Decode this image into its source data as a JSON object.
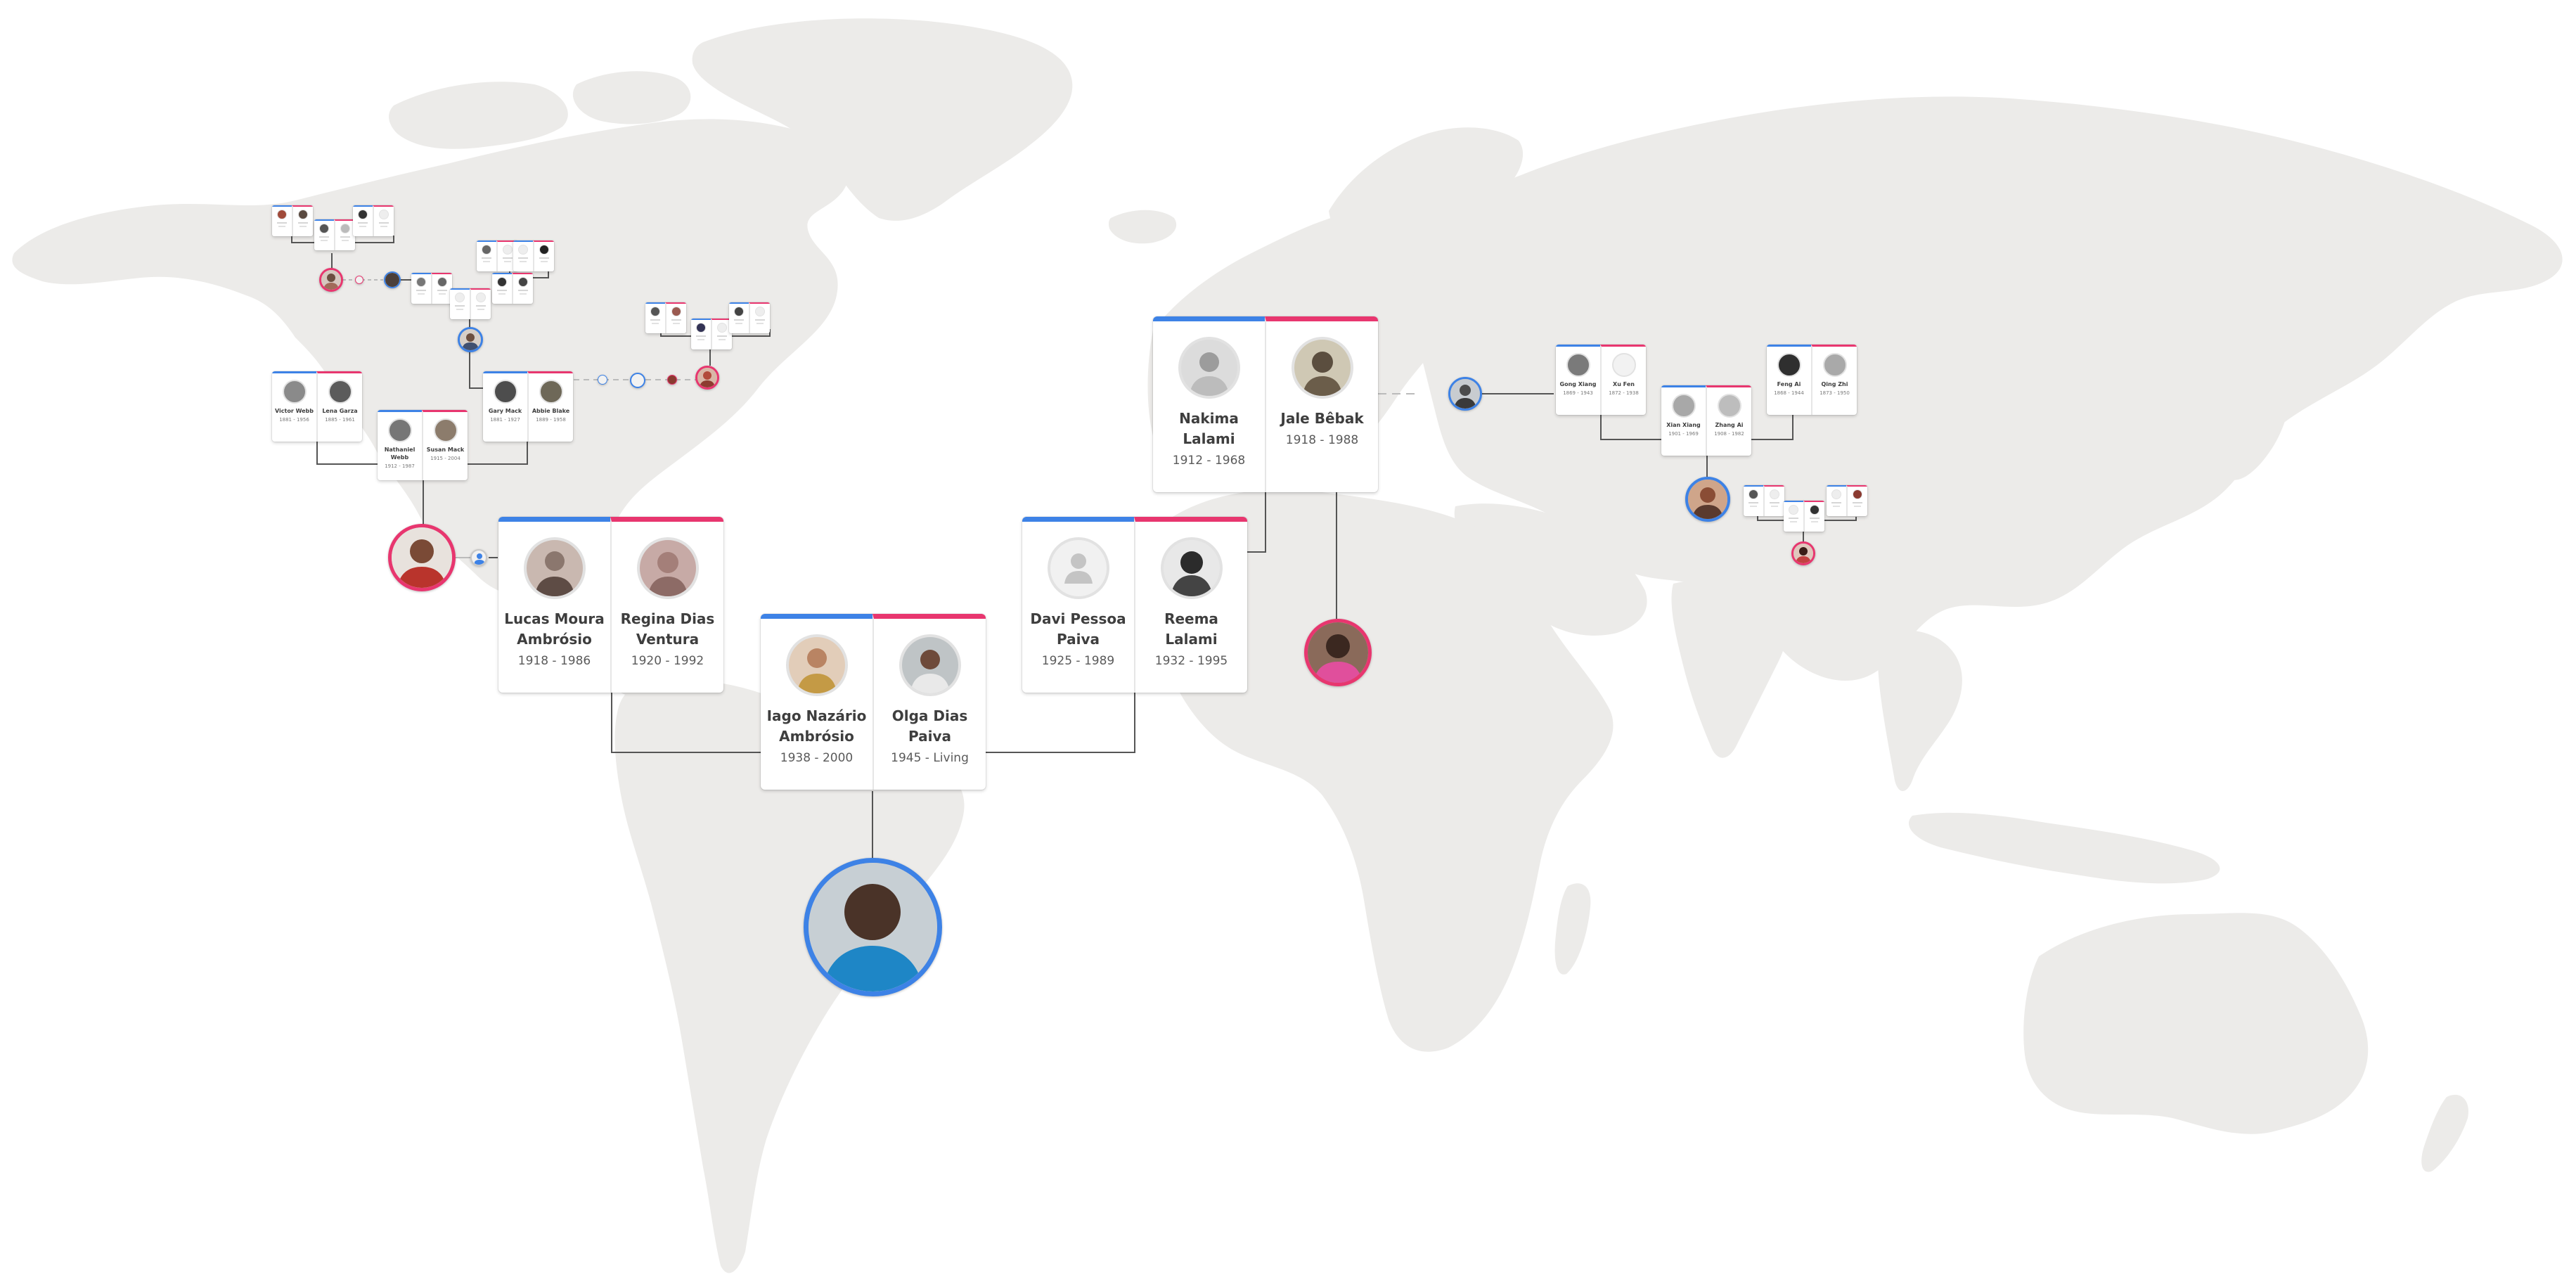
{
  "colors": {
    "map_land": "#ecebe9",
    "male_accent": "#3d82e6",
    "female_accent": "#e8366f",
    "connector": "#555555"
  },
  "main_couples": {
    "lucas_regina": {
      "husband": {
        "name": "Lucas Moura Ambrósio",
        "dates": "1918 - 1986",
        "icon": "portrait-icon"
      },
      "wife": {
        "name": "Regina Dias Ventura",
        "dates": "1920 - 1992",
        "icon": "portrait-icon"
      }
    },
    "iago_olga": {
      "husband": {
        "name": "Iago Nazário Ambrósio",
        "dates": "1938 - 2000",
        "icon": "portrait-icon"
      },
      "wife": {
        "name": "Olga Dias Paiva",
        "dates": "1945 - Living",
        "icon": "portrait-icon"
      }
    },
    "davi_reema": {
      "husband": {
        "name": "Davi Pessoa Paiva",
        "dates": "1925 - 1989",
        "icon": "silhouette-icon"
      },
      "wife": {
        "name": "Reema Lalami",
        "dates": "1932 - 1995",
        "icon": "portrait-icon"
      }
    },
    "nakima_jale": {
      "husband": {
        "name": "Nakima Lalami",
        "dates": "1912 - 1968",
        "icon": "portrait-icon"
      },
      "wife": {
        "name": "Jale Bêbak",
        "dates": "1918 - 1988",
        "icon": "portrait-icon"
      }
    }
  },
  "small_couples": {
    "victor_lena": {
      "husband": {
        "name": "Victor Webb",
        "dates": "1881 - 1956"
      },
      "wife": {
        "name": "Lena Garza",
        "dates": "1885 - 1961"
      }
    },
    "nathaniel_susan": {
      "husband": {
        "name": "Nathaniel Webb",
        "dates": "1912 - 1987"
      },
      "wife": {
        "name": "Susan Mack",
        "dates": "1915 - 2004"
      }
    },
    "gary_abbie": {
      "husband": {
        "name": "Gary Mack",
        "dates": "1881 - 1927"
      },
      "wife": {
        "name": "Abbie Blake",
        "dates": "1889 - 1958"
      }
    },
    "gong_xu": {
      "husband": {
        "name": "Gong Xiang",
        "dates": "1869 - 1943"
      },
      "wife": {
        "name": "Xu Fen",
        "dates": "1872 - 1938"
      }
    },
    "xian_zhang": {
      "husband": {
        "name": "Xian Xiang",
        "dates": "1901 - 1969"
      },
      "wife": {
        "name": "Zhang Ai",
        "dates": "1908 - 1982"
      }
    },
    "feng_qing": {
      "husband": {
        "name": "Feng Ai",
        "dates": "1868 - 1944"
      },
      "wife": {
        "name": "Qing Zhi",
        "dates": "1873 - 1950"
      }
    }
  },
  "root_person": {
    "icon": "portrait-icon"
  }
}
